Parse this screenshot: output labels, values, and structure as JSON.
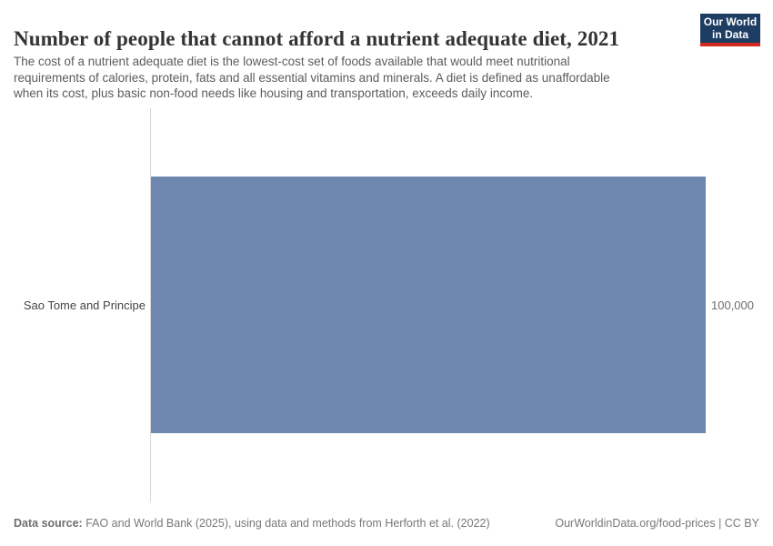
{
  "header": {
    "title": "Number of people that cannot afford a nutrient adequate diet, 2021",
    "subtitle_lines": [
      "The cost of a nutrient adequate diet is the lowest-cost set of foods available that would meet nutritional",
      "requirements of calories, protein, fats and all essential vitamins and minerals. A diet is defined as unaffordable",
      "when its cost, plus basic non-food needs like housing and transportation, exceeds daily income."
    ],
    "logo": {
      "line1": "Our World",
      "line2": "in Data",
      "bg_color": "#1d3d63",
      "accent_color": "#d42a20"
    }
  },
  "chart_data": {
    "type": "bar",
    "orientation": "horizontal",
    "title": "Number of people that cannot afford a nutrient adequate diet, 2021",
    "categories": [
      "Sao Tome and Principe"
    ],
    "values": [
      100000
    ],
    "value_labels": [
      "100,000"
    ],
    "xlabel": "",
    "ylabel": "",
    "xlim": [
      0,
      100000
    ],
    "grid": false,
    "legend": false,
    "bar_color": "#6d87af",
    "axis_line_color": "#d9d9d9"
  },
  "footer": {
    "source_label": "Data source:",
    "source_text": " FAO and World Bank (2025), using data and methods from Herforth et al. (2022)",
    "link_text": "OurWorldinData.org/food-prices | CC BY"
  }
}
